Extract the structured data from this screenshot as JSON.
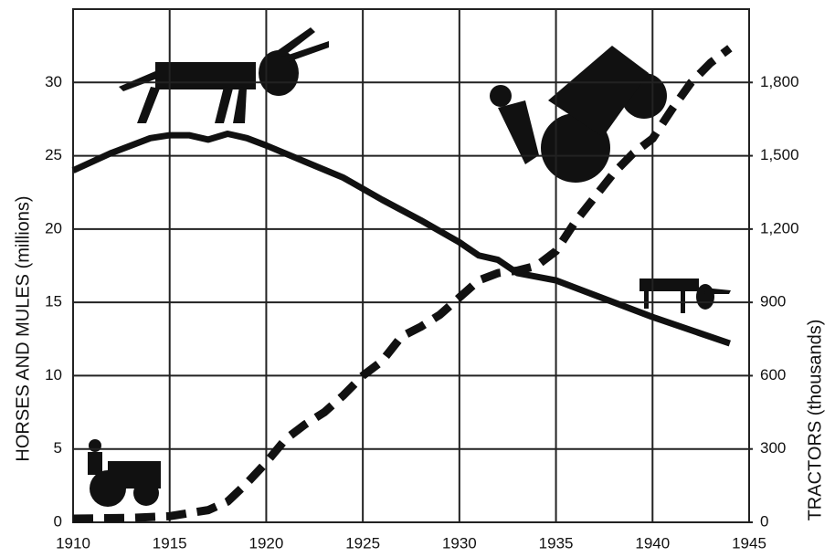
{
  "chart_data": {
    "type": "line",
    "y_label": "HORSES AND MULES (millions)",
    "y2_label": "TRACTORS (thousands)",
    "xlim": [
      1910,
      1945
    ],
    "xticks": [
      1910,
      1915,
      1920,
      1925,
      1930,
      1935,
      1940,
      1945
    ],
    "ylim": [
      0,
      35
    ],
    "yticks": [
      0,
      5,
      10,
      15,
      20,
      25,
      30
    ],
    "y2lim": [
      0,
      2100
    ],
    "y2ticks": [
      0,
      300,
      600,
      900,
      {
        "value": 1200,
        "label": "1,200"
      },
      {
        "value": 1500,
        "label": "1,500"
      },
      {
        "value": 1800,
        "label": "1,800"
      }
    ],
    "grid": true,
    "series": [
      {
        "color": "#111111",
        "dashed": false,
        "x": [
          1910,
          1912,
          1914,
          1915,
          1916,
          1917,
          1918,
          1919,
          1920,
          1922,
          1924,
          1926,
          1928,
          1930,
          1931,
          1932,
          1933,
          1935,
          1940,
          1944
        ],
        "values": [
          24.0,
          25.2,
          26.2,
          26.4,
          26.4,
          26.1,
          26.5,
          26.2,
          25.7,
          24.6,
          23.5,
          22.0,
          20.6,
          19.1,
          18.2,
          17.9,
          17.0,
          16.5,
          14.0,
          12.2
        ]
      },
      {
        "color": "#111111",
        "dashed": true,
        "axis": "y2",
        "x": [
          1910,
          1913,
          1915,
          1917,
          1918,
          1919,
          1920,
          1921,
          1922,
          1923,
          1924,
          1925,
          1926,
          1927,
          1928,
          1929,
          1930,
          1931,
          1932,
          1933,
          1934,
          1935,
          1936,
          1937,
          1938,
          1939,
          1940,
          1941,
          1942,
          1943,
          1944
        ],
        "values": [
          15,
          18,
          25,
          50,
          85,
          160,
          245,
          340,
          400,
          450,
          520,
          600,
          660,
          760,
          800,
          850,
          920,
          990,
          1020,
          1030,
          1050,
          1110,
          1230,
          1330,
          1430,
          1510,
          1570,
          1690,
          1800,
          1880,
          1940
        ]
      }
    ]
  }
}
